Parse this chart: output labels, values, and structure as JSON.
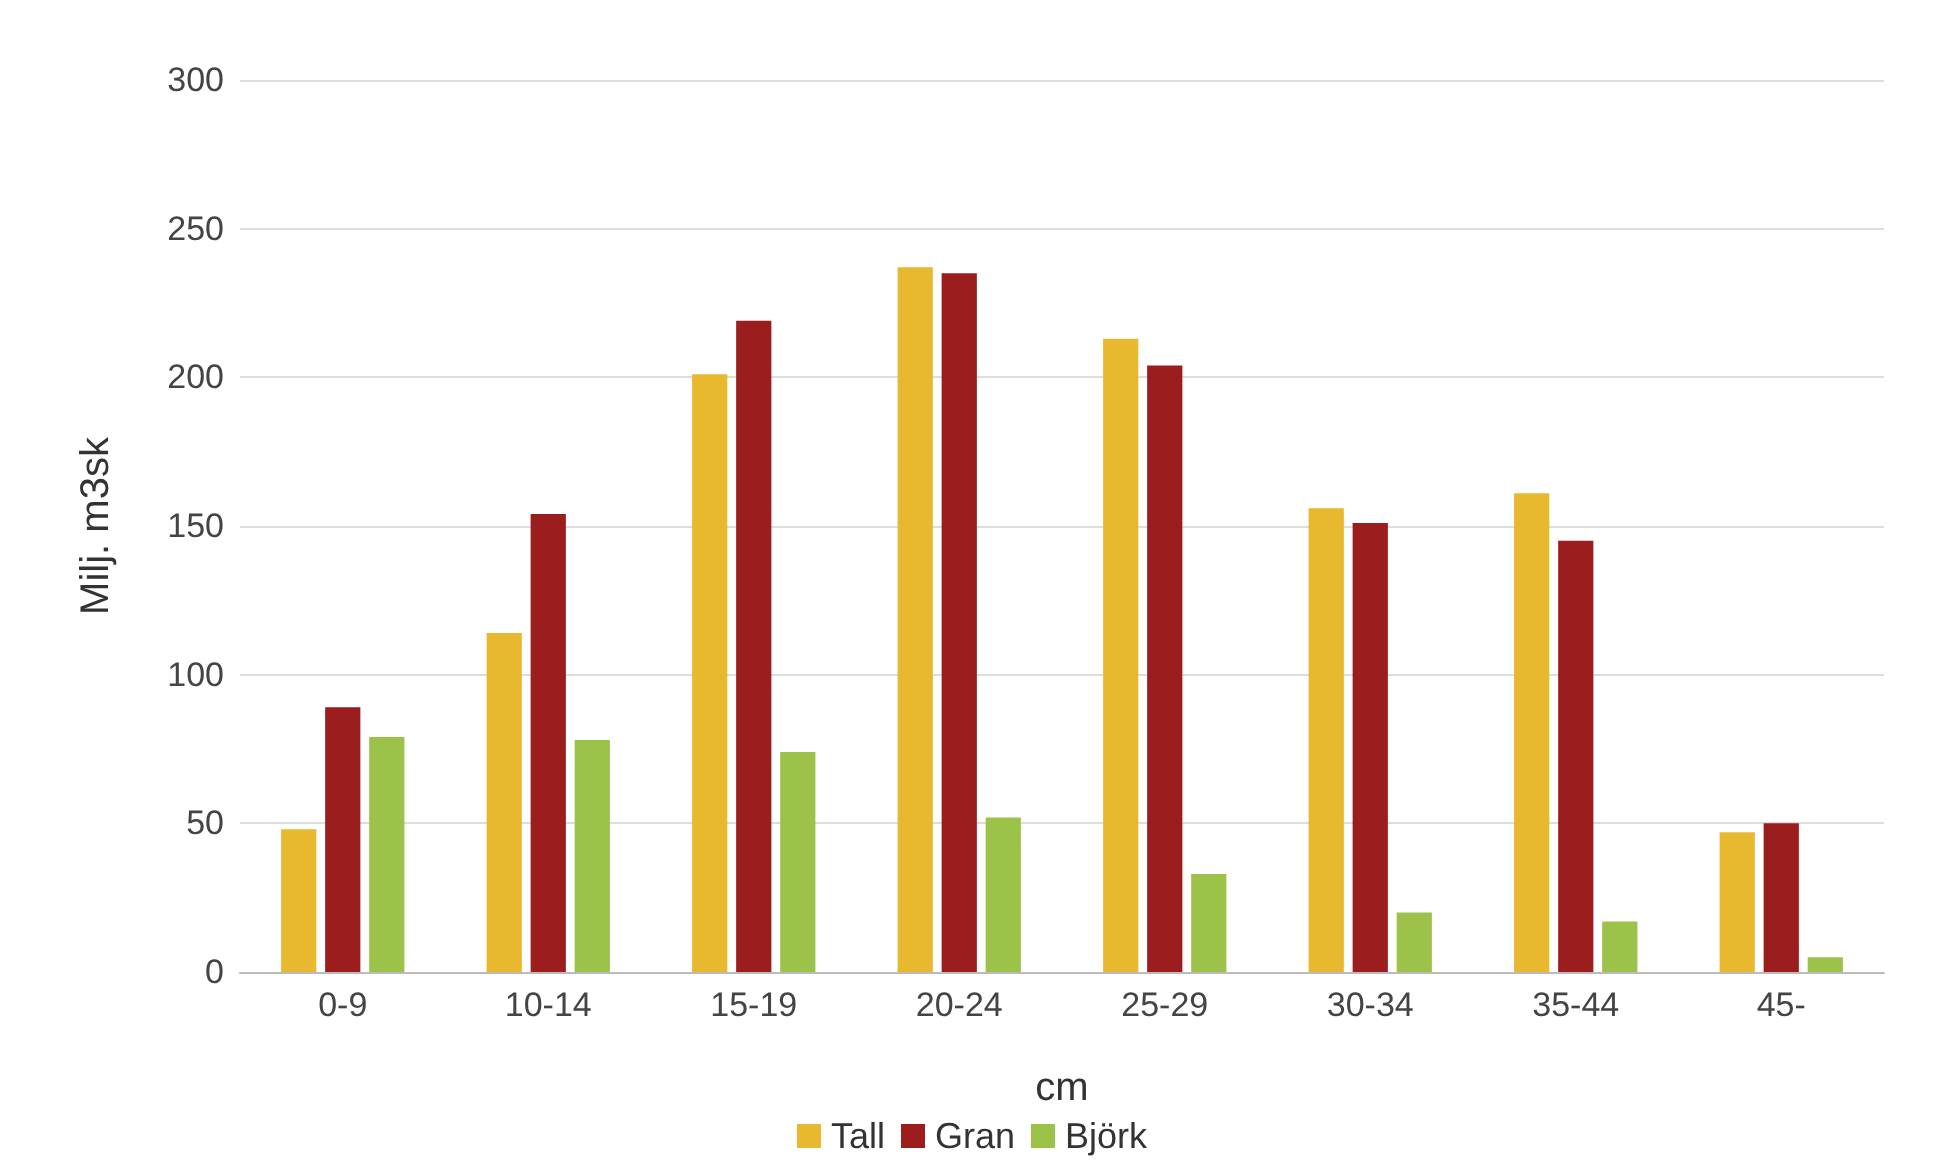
{
  "chart_data": {
    "type": "bar",
    "xlabel": "cm",
    "ylabel": "Milj. m3sk",
    "categories": [
      "0-9",
      "10-14",
      "15-19",
      "20-24",
      "25-29",
      "30-34",
      "35-44",
      "45-"
    ],
    "series": [
      {
        "name": "Tall",
        "color": "#e8b82e",
        "values": [
          48,
          114,
          201,
          237,
          213,
          156,
          161,
          47
        ]
      },
      {
        "name": "Gran",
        "color": "#9b1d1d",
        "values": [
          89,
          154,
          219,
          235,
          204,
          151,
          145,
          50
        ]
      },
      {
        "name": "Björk",
        "color": "#9dc24a",
        "values": [
          79,
          78,
          74,
          52,
          33,
          20,
          17,
          5
        ]
      }
    ],
    "ylim": [
      0,
      300
    ],
    "yticks": [
      0,
      50,
      100,
      150,
      200,
      250,
      300
    ],
    "grid": "y",
    "legend": "bottom"
  }
}
